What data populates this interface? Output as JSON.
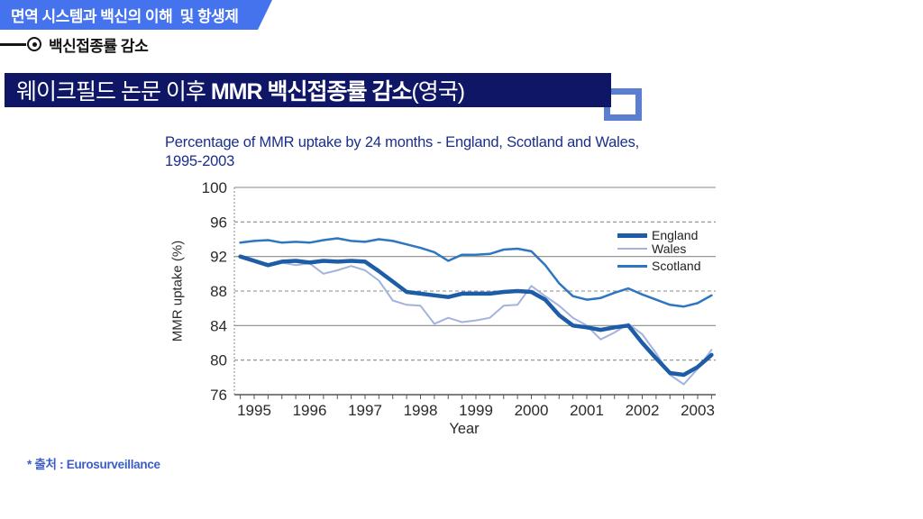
{
  "colors": {
    "banner_blue": "#4573ee",
    "navy": "#0f1666",
    "bracket": "#5b7fd0",
    "ink": "#151515",
    "chart_title": "#1b2e8c",
    "axis_ink": "#2a2a2a",
    "grid": "#8a8a8a",
    "footer_blue": "#3a5ec6"
  },
  "header": {
    "banner_title": "면역 시스템과 백신의 이해  및 항생제",
    "section_label": "백신접종률 감소"
  },
  "title_bar": {
    "prefix": "웨이크필드 논문 이후 ",
    "emphasis": "MMR 백신접종률 감소",
    "suffix": "(영국)"
  },
  "footer": {
    "source": "* 출처 : Eurosurveillance"
  },
  "chart_data": {
    "type": "line",
    "title": "Percentage of MMR uptake by 24 months - England, Scotland and Wales, 1995-2003",
    "title_lines": [
      "Percentage of MMR uptake by 24 months - England, Scotland and Wales,",
      "1995-2003"
    ],
    "xlabel": "Year",
    "ylabel": "MMR uptake (%)",
    "xlim": [
      1994.6,
      2003.45
    ],
    "ylim": [
      76,
      100
    ],
    "yticks": [
      100,
      96,
      92,
      88,
      84,
      80,
      76
    ],
    "yticks_solid": [
      100,
      92,
      84
    ],
    "xticks": [
      1995,
      1996,
      1997,
      1998,
      1999,
      2000,
      2001,
      2002,
      2003
    ],
    "grid": true,
    "legend_position": "upper right",
    "x": [
      1994.75,
      1995.0,
      1995.25,
      1995.5,
      1995.75,
      1996.0,
      1996.25,
      1996.5,
      1996.75,
      1997.0,
      1997.25,
      1997.5,
      1997.75,
      1998.0,
      1998.25,
      1998.5,
      1998.75,
      1999.0,
      1999.25,
      1999.5,
      1999.75,
      2000.0,
      2000.25,
      2000.5,
      2000.75,
      2001.0,
      2001.25,
      2001.5,
      2001.75,
      2002.0,
      2002.25,
      2002.5,
      2002.75,
      2003.0,
      2003.25
    ],
    "series": [
      {
        "name": "England",
        "color": "#1d5ca6",
        "stroke_width": 4.5,
        "values": [
          92.0,
          91.5,
          91.0,
          91.4,
          91.5,
          91.3,
          91.5,
          91.4,
          91.5,
          91.4,
          90.3,
          89.1,
          87.9,
          87.7,
          87.5,
          87.3,
          87.7,
          87.7,
          87.7,
          87.9,
          88.0,
          87.9,
          87.0,
          85.2,
          84.0,
          83.8,
          83.5,
          83.8,
          84.0,
          82.0,
          80.2,
          78.5,
          78.3,
          79.2,
          80.6
        ]
      },
      {
        "name": "Wales",
        "color": "#a4b3dd",
        "stroke_width": 2,
        "values": [
          92.0,
          91.5,
          91.0,
          91.3,
          91.0,
          91.2,
          90.0,
          90.4,
          90.9,
          90.4,
          89.2,
          86.9,
          86.4,
          86.3,
          84.2,
          84.9,
          84.4,
          84.6,
          84.9,
          86.3,
          86.4,
          88.6,
          87.4,
          86.3,
          84.9,
          84.0,
          82.4,
          83.2,
          84.2,
          83.0,
          80.8,
          78.3,
          77.2,
          79.0,
          81.2
        ]
      },
      {
        "name": "Scotland",
        "color": "#2e76c0",
        "stroke_width": 2.5,
        "values": [
          93.6,
          93.8,
          93.9,
          93.6,
          93.7,
          93.6,
          93.9,
          94.1,
          93.8,
          93.7,
          94.0,
          93.8,
          93.4,
          93.0,
          92.5,
          91.5,
          92.2,
          92.2,
          92.3,
          92.8,
          92.9,
          92.6,
          91.0,
          88.9,
          87.4,
          87.0,
          87.2,
          87.8,
          88.3,
          87.6,
          87.0,
          86.4,
          86.2,
          86.6,
          87.5
        ]
      }
    ]
  }
}
